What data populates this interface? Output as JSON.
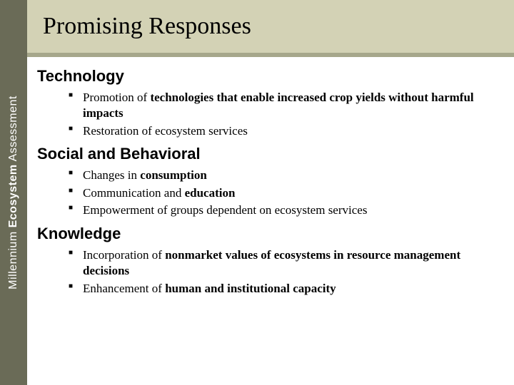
{
  "sidebar": {
    "brand_prefix": "Millennium ",
    "brand_bold": "Ecosystem",
    "brand_suffix": " Assessment"
  },
  "title": "Promising Responses",
  "colors": {
    "sidebar_bg": "#6a6b57",
    "title_band_bg": "#d3d2b5",
    "divider_bg": "#a6a78b",
    "text": "#000000",
    "sidebar_text": "#ffffff"
  },
  "sections": [
    {
      "heading": "Technology",
      "bullets": [
        {
          "parts": [
            {
              "t": "Promotion of ",
              "b": false
            },
            {
              "t": "technologies that enable increased crop yields without harmful impacts",
              "b": true
            }
          ]
        },
        {
          "parts": [
            {
              "t": "Restoration of ecosystem services",
              "b": false
            }
          ]
        }
      ]
    },
    {
      "heading": "Social and Behavioral",
      "bullets": [
        {
          "parts": [
            {
              "t": "Changes in ",
              "b": false
            },
            {
              "t": "consumption",
              "b": true
            }
          ]
        },
        {
          "parts": [
            {
              "t": "Communication and ",
              "b": false
            },
            {
              "t": "education",
              "b": true
            }
          ]
        },
        {
          "parts": [
            {
              "t": "Empowerment of groups dependent on ecosystem services",
              "b": false
            }
          ]
        }
      ]
    },
    {
      "heading": "Knowledge",
      "bullets": [
        {
          "parts": [
            {
              "t": "Incorporation of ",
              "b": false
            },
            {
              "t": "nonmarket values of ecosystems in resource management decisions",
              "b": true
            }
          ]
        },
        {
          "parts": [
            {
              "t": "Enhancement of ",
              "b": false
            },
            {
              "t": "human and institutional capacity",
              "b": true
            }
          ]
        }
      ]
    }
  ]
}
